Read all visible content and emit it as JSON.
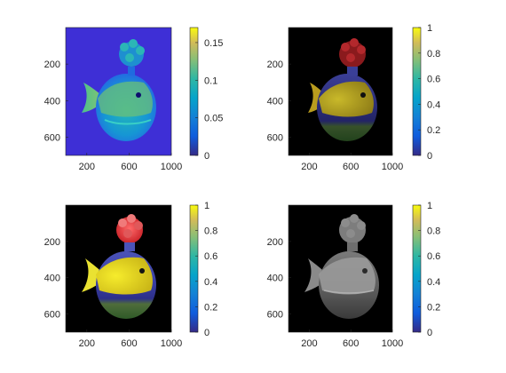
{
  "chart_data": [
    {
      "type": "heatmap",
      "image": "fish-plush-gradient-map",
      "colormap": "parula",
      "x_ticks": [
        "200",
        "600",
        "1000"
      ],
      "y_ticks": [
        "200",
        "400",
        "600"
      ],
      "xlim": [
        0,
        1000
      ],
      "ylim": [
        0,
        700
      ],
      "colorbar": {
        "ticks": [
          "0.15",
          "0.1",
          "0.05",
          "0"
        ],
        "tick_values": [
          0.15,
          0.1,
          0.05,
          0
        ],
        "range": [
          0,
          0.17
        ]
      },
      "colors": {
        "background": "#3e2fd6"
      }
    },
    {
      "type": "heatmap",
      "image": "fish-plush-rgb-darkened",
      "colormap": "parula",
      "x_ticks": [
        "200",
        "600",
        "1000"
      ],
      "y_ticks": [
        "200",
        "400",
        "600"
      ],
      "xlim": [
        0,
        1000
      ],
      "ylim": [
        0,
        700
      ],
      "colorbar": {
        "ticks": [
          "1",
          "0.8",
          "0.6",
          "0.4",
          "0.2",
          "0"
        ],
        "tick_values": [
          1,
          0.8,
          0.6,
          0.4,
          0.2,
          0
        ],
        "range": [
          0,
          1
        ]
      },
      "colors": {
        "background": "#000000"
      }
    },
    {
      "type": "heatmap",
      "image": "fish-plush-rgb",
      "colormap": "parula",
      "x_ticks": [
        "200",
        "600",
        "1000"
      ],
      "y_ticks": [
        "200",
        "400",
        "600"
      ],
      "xlim": [
        0,
        1000
      ],
      "ylim": [
        0,
        700
      ],
      "colorbar": {
        "ticks": [
          "1",
          "0.8",
          "0.6",
          "0.4",
          "0.2",
          "0"
        ],
        "tick_values": [
          1,
          0.8,
          0.6,
          0.4,
          0.2,
          0
        ],
        "range": [
          0,
          1
        ]
      },
      "colors": {
        "background": "#000000"
      }
    },
    {
      "type": "heatmap",
      "image": "fish-plush-grayscale",
      "colormap": "parula",
      "x_ticks": [
        "200",
        "600",
        "1000"
      ],
      "y_ticks": [
        "200",
        "400",
        "600"
      ],
      "xlim": [
        0,
        1000
      ],
      "ylim": [
        0,
        700
      ],
      "colorbar": {
        "ticks": [
          "1",
          "0.8",
          "0.6",
          "0.4",
          "0.2",
          "0"
        ],
        "tick_values": [
          1,
          0.8,
          0.6,
          0.4,
          0.2,
          0
        ],
        "range": [
          0,
          1
        ]
      },
      "colors": {
        "background": "#000000"
      }
    }
  ]
}
